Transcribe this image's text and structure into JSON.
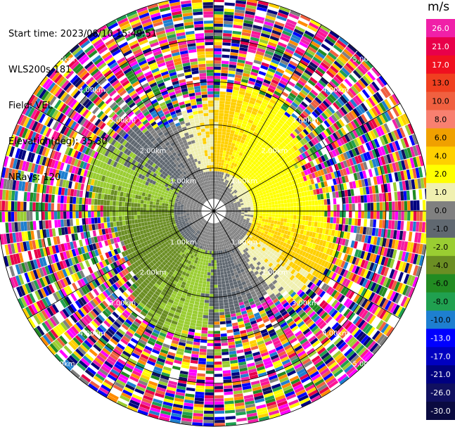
{
  "header": {
    "start_time": "Start time: 2023/08/10 15:49:51",
    "instrument": "WLS200s-181",
    "field": "Field: VEL",
    "elevation": "Elevation(deg): 35.30",
    "nrays": "NRays: 120"
  },
  "colorbar": {
    "unit": "m/s",
    "ticks": [
      "26.0",
      "21.0",
      "17.0",
      "13.0",
      "10.0",
      "8.0",
      "6.0",
      "4.0",
      "2.0",
      "1.0",
      "0.0",
      "-1.0",
      "-2.0",
      "-4.0",
      "-6.0",
      "-8.0",
      "-10.0",
      "-13.0",
      "-17.0",
      "-21.0",
      "-26.0",
      "-30.0"
    ],
    "colors": [
      "#f020a8",
      "#e8004a",
      "#f01020",
      "#f04020",
      "#f06040",
      "#f88070",
      "#f0a000",
      "#ffd000",
      "#ffff00",
      "#f0f0b0",
      "#808080",
      "#606870",
      "#9acd32",
      "#6b8e23",
      "#228b22",
      "#20a050",
      "#1e7fd0",
      "#0000ff",
      "#0000c0",
      "#000080",
      "#101060",
      "#0a0a40"
    ]
  },
  "chart_data": {
    "type": "ppi",
    "field": "VEL",
    "units": "m/s",
    "nrays": 120,
    "elevation_deg": 35.3,
    "range_rings_km": [
      1.0,
      2.0,
      3.0,
      4.0,
      5.0
    ],
    "ring_labels": [
      "1.00km",
      "2.00km",
      "3.00km",
      "4.00km",
      "5.00km"
    ],
    "clim": [
      -30,
      30
    ]
  }
}
